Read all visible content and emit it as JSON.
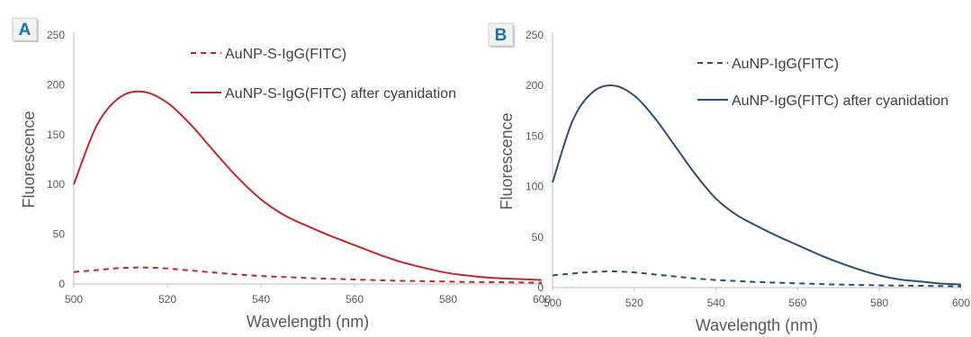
{
  "chart_data": [
    {
      "type": "line",
      "panel_label": "A",
      "xlabel": "Wavelength (nm)",
      "ylabel": "Fluorescence",
      "xlim": [
        500,
        600
      ],
      "ylim": [
        0,
        250
      ],
      "x_ticks": [
        500,
        520,
        540,
        560,
        580,
        600
      ],
      "y_ticks": [
        0,
        50,
        100,
        150,
        200,
        250
      ],
      "grid": false,
      "legend_position": "top-right",
      "accent_color": "#1f6fb4",
      "series": [
        {
          "name": "AuNP-S-IgG(FITC)",
          "style": "dashed",
          "color": "#c0282d",
          "x": [
            500,
            505,
            510,
            515,
            520,
            525,
            530,
            535,
            540,
            545,
            550,
            555,
            560,
            565,
            570,
            575,
            580,
            585,
            590,
            595,
            600
          ],
          "values": [
            12,
            14,
            16,
            16.5,
            15.5,
            13.5,
            11.5,
            9.5,
            8,
            7,
            6,
            5.2,
            4.5,
            3.8,
            3.2,
            2.8,
            2.4,
            2,
            1.8,
            1.5,
            1.3
          ]
        },
        {
          "name": "AuNP-S-IgG(FITC) after cyanidation",
          "style": "solid",
          "color": "#c0282d",
          "x": [
            500,
            505,
            510,
            515,
            520,
            525,
            530,
            535,
            540,
            545,
            550,
            555,
            560,
            565,
            570,
            575,
            580,
            585,
            590,
            595,
            600
          ],
          "values": [
            100,
            160,
            188,
            193,
            182,
            160,
            133,
            107,
            85,
            69,
            58,
            48,
            39,
            30,
            22,
            16,
            11,
            8,
            6,
            5,
            4
          ]
        }
      ]
    },
    {
      "type": "line",
      "panel_label": "B",
      "xlabel": "Wavelength (nm)",
      "ylabel": "Fluorescence",
      "xlim": [
        500,
        600
      ],
      "ylim": [
        0,
        250
      ],
      "x_ticks": [
        500,
        520,
        540,
        560,
        580,
        600
      ],
      "y_ticks": [
        0,
        50,
        100,
        150,
        200,
        250
      ],
      "grid": false,
      "legend_position": "top-right",
      "accent_color": "#1f6fb4",
      "series": [
        {
          "name": "AuNP-IgG(FITC)",
          "style": "dashed",
          "color": "#2c4f73",
          "x": [
            500,
            505,
            510,
            515,
            520,
            525,
            530,
            535,
            540,
            545,
            550,
            555,
            560,
            565,
            570,
            575,
            580,
            585,
            590,
            595,
            600
          ],
          "values": [
            12,
            14,
            15.5,
            16,
            15,
            13,
            11,
            9,
            7.5,
            6.5,
            5.5,
            4.8,
            4.2,
            3.6,
            3,
            2.6,
            2.2,
            2,
            1.8,
            1.5,
            1.2
          ]
        },
        {
          "name": "AuNP-IgG(FITC) after cyanidation",
          "style": "solid",
          "color": "#2c4f73",
          "x": [
            500,
            505,
            510,
            515,
            520,
            525,
            530,
            535,
            540,
            545,
            550,
            555,
            560,
            565,
            570,
            575,
            580,
            585,
            590,
            595,
            600
          ],
          "values": [
            104,
            166,
            194,
            200,
            190,
            168,
            140,
            112,
            88,
            72,
            61,
            51,
            42,
            33,
            25,
            18,
            12,
            8,
            6,
            4,
            3
          ]
        }
      ]
    }
  ]
}
